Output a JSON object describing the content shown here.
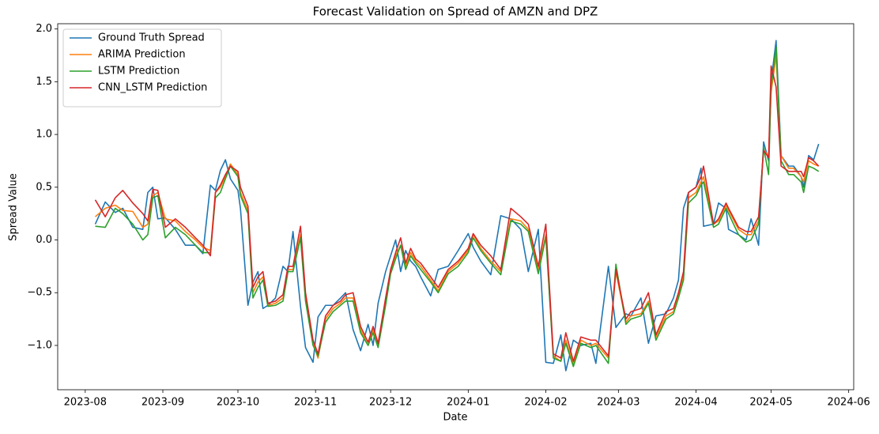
{
  "chart_data": {
    "type": "line",
    "title": "Forecast Validation on Spread of AMZN and DPZ",
    "xlabel": "Date",
    "ylabel": "Spread Value",
    "legend": "upper left",
    "grid": false,
    "xlim": [
      "2023-07-21",
      "2024-06-03"
    ],
    "ylim": [
      -1.42,
      2.05
    ],
    "xticks": [
      {
        "value": "2023-08-01",
        "label": "2023-08"
      },
      {
        "value": "2023-09-01",
        "label": "2023-09"
      },
      {
        "value": "2023-10-01",
        "label": "2023-10"
      },
      {
        "value": "2023-11-01",
        "label": "2023-11"
      },
      {
        "value": "2023-12-01",
        "label": "2023-12"
      },
      {
        "value": "2024-01-01",
        "label": "2024-01"
      },
      {
        "value": "2024-02-01",
        "label": "2024-02"
      },
      {
        "value": "2024-03-01",
        "label": "2024-03"
      },
      {
        "value": "2024-04-01",
        "label": "2024-04"
      },
      {
        "value": "2024-05-01",
        "label": "2024-05"
      },
      {
        "value": "2024-06-01",
        "label": "2024-06"
      }
    ],
    "yticks": [
      {
        "value": -1.0,
        "label": "−1.0"
      },
      {
        "value": -0.5,
        "label": "−0.5"
      },
      {
        "value": 0,
        "label": "0.0"
      },
      {
        "value": 0.5,
        "label": "0.5"
      },
      {
        "value": 1.0,
        "label": "1.0"
      },
      {
        "value": 1.5,
        "label": "1.5"
      },
      {
        "value": 2.0,
        "label": "2.0"
      }
    ],
    "x": [
      "2023-08-05",
      "2023-08-09",
      "2023-08-13",
      "2023-08-16",
      "2023-08-20",
      "2023-08-24",
      "2023-08-26",
      "2023-08-28",
      "2023-08-30",
      "2023-09-02",
      "2023-09-06",
      "2023-09-10",
      "2023-09-14",
      "2023-09-17",
      "2023-09-20",
      "2023-09-22",
      "2023-09-24",
      "2023-09-26",
      "2023-09-28",
      "2023-10-01",
      "2023-10-02",
      "2023-10-05",
      "2023-10-07",
      "2023-10-09",
      "2023-10-11",
      "2023-10-13",
      "2023-10-16",
      "2023-10-19",
      "2023-10-21",
      "2023-10-23",
      "2023-10-26",
      "2023-10-28",
      "2023-10-31",
      "2023-11-02",
      "2023-11-05",
      "2023-11-08",
      "2023-11-11",
      "2023-11-13",
      "2023-11-16",
      "2023-11-19",
      "2023-11-22",
      "2023-11-24",
      "2023-11-26",
      "2023-11-29",
      "2023-12-01",
      "2023-12-03",
      "2023-12-05",
      "2023-12-07",
      "2023-12-09",
      "2023-12-11",
      "2023-12-13",
      "2023-12-17",
      "2023-12-20",
      "2023-12-24",
      "2023-12-28",
      "2024-01-01",
      "2024-01-03",
      "2024-01-06",
      "2024-01-10",
      "2024-01-14",
      "2024-01-18",
      "2024-01-22",
      "2024-01-25",
      "2024-01-29",
      "2024-02-01",
      "2024-02-04",
      "2024-02-07",
      "2024-02-09",
      "2024-02-12",
      "2024-02-15",
      "2024-02-19",
      "2024-02-21",
      "2024-02-26",
      "2024-02-29",
      "2024-03-04",
      "2024-03-06",
      "2024-03-10",
      "2024-03-13",
      "2024-03-16",
      "2024-03-20",
      "2024-03-23",
      "2024-03-25",
      "2024-03-27",
      "2024-03-29",
      "2024-04-01",
      "2024-04-03",
      "2024-04-04",
      "2024-04-08",
      "2024-04-10",
      "2024-04-13",
      "2024-04-14",
      "2024-04-18",
      "2024-04-21",
      "2024-04-23",
      "2024-04-26",
      "2024-04-28",
      "2024-04-30",
      "2024-05-01",
      "2024-05-03",
      "2024-05-05",
      "2024-05-08",
      "2024-05-10",
      "2024-05-13",
      "2024-05-14",
      "2024-05-16",
      "2024-05-18",
      "2024-05-20"
    ],
    "series": [
      {
        "name": "Ground Truth Spread",
        "color": "#1f77b4",
        "values": [
          0.15,
          0.36,
          0.26,
          0.3,
          0.12,
          0.1,
          0.45,
          0.5,
          0.2,
          0.21,
          0.1,
          -0.05,
          -0.05,
          -0.13,
          0.52,
          0.47,
          0.66,
          0.76,
          0.58,
          0.47,
          0.3,
          -0.62,
          -0.4,
          -0.3,
          -0.65,
          -0.62,
          -0.55,
          -0.25,
          -0.3,
          0.08,
          -0.63,
          -1.02,
          -1.16,
          -0.73,
          -0.62,
          -0.62,
          -0.55,
          -0.5,
          -0.85,
          -1.05,
          -0.8,
          -1.0,
          -0.6,
          -0.3,
          -0.15,
          0.0,
          -0.3,
          -0.1,
          -0.2,
          -0.25,
          -0.35,
          -0.53,
          -0.28,
          -0.25,
          -0.1,
          0.06,
          -0.07,
          -0.2,
          -0.33,
          0.23,
          0.2,
          0.1,
          -0.3,
          0.1,
          -1.16,
          -1.17,
          -0.9,
          -1.24,
          -0.95,
          -1.0,
          -0.98,
          -1.17,
          -0.25,
          -0.83,
          -0.7,
          -0.72,
          -0.55,
          -0.98,
          -0.72,
          -0.7,
          -0.55,
          -0.38,
          0.3,
          0.45,
          0.5,
          0.68,
          0.13,
          0.15,
          0.35,
          0.3,
          0.1,
          0.05,
          0.0,
          0.2,
          -0.05,
          0.93,
          0.75,
          1.5,
          1.89,
          0.8,
          0.7,
          0.7,
          0.6,
          0.5,
          0.8,
          0.76,
          0.91
        ]
      },
      {
        "name": "ARIMA Prediction",
        "color": "#ff7f0e",
        "values": [
          0.22,
          0.3,
          0.33,
          0.28,
          0.27,
          0.12,
          0.15,
          0.42,
          0.45,
          0.2,
          0.18,
          0.08,
          0.0,
          -0.07,
          -0.1,
          0.45,
          0.5,
          0.6,
          0.72,
          0.62,
          0.45,
          0.28,
          -0.5,
          -0.4,
          -0.35,
          -0.62,
          -0.6,
          -0.55,
          -0.28,
          -0.28,
          0.05,
          -0.55,
          -0.98,
          -1.12,
          -0.75,
          -0.65,
          -0.6,
          -0.55,
          -0.55,
          -0.85,
          -1.0,
          -0.85,
          -1.0,
          -0.6,
          -0.3,
          -0.15,
          -0.05,
          -0.25,
          -0.12,
          -0.2,
          -0.25,
          -0.38,
          -0.48,
          -0.3,
          -0.22,
          -0.1,
          0.05,
          -0.08,
          -0.2,
          -0.3,
          0.2,
          0.18,
          0.1,
          -0.28,
          0.05,
          -1.1,
          -1.15,
          -0.95,
          -1.18,
          -0.95,
          -1.0,
          -0.98,
          -1.12,
          -0.3,
          -0.78,
          -0.72,
          -0.7,
          -0.58,
          -0.92,
          -0.72,
          -0.68,
          -0.52,
          -0.35,
          0.4,
          0.45,
          0.55,
          0.6,
          0.15,
          0.18,
          0.33,
          0.28,
          0.1,
          0.05,
          0.05,
          0.18,
          0.85,
          0.8,
          1.4,
          1.75,
          0.8,
          0.68,
          0.68,
          0.6,
          0.55,
          0.75,
          0.72,
          0.7
        ]
      },
      {
        "name": "LSTM Prediction",
        "color": "#2ca02c",
        "values": [
          0.13,
          0.12,
          0.3,
          0.25,
          0.15,
          0.0,
          0.05,
          0.4,
          0.42,
          0.02,
          0.12,
          0.05,
          -0.05,
          -0.12,
          -0.12,
          0.4,
          0.45,
          0.58,
          0.7,
          0.6,
          0.42,
          0.25,
          -0.55,
          -0.45,
          -0.38,
          -0.63,
          -0.62,
          -0.58,
          -0.3,
          -0.3,
          0.02,
          -0.58,
          -1.0,
          -1.1,
          -0.78,
          -0.68,
          -0.62,
          -0.58,
          -0.58,
          -0.88,
          -1.0,
          -0.88,
          -1.02,
          -0.62,
          -0.32,
          -0.18,
          -0.05,
          -0.28,
          -0.15,
          -0.22,
          -0.28,
          -0.4,
          -0.5,
          -0.32,
          -0.25,
          -0.12,
          0.02,
          -0.1,
          -0.22,
          -0.33,
          0.18,
          0.15,
          0.08,
          -0.32,
          0.03,
          -1.12,
          -1.15,
          -0.98,
          -1.2,
          -0.98,
          -1.02,
          -1.0,
          -1.17,
          -0.23,
          -0.8,
          -0.75,
          -0.72,
          -0.6,
          -0.95,
          -0.75,
          -0.7,
          -0.55,
          -0.38,
          0.35,
          0.42,
          0.52,
          0.55,
          0.12,
          0.15,
          0.3,
          0.25,
          0.05,
          -0.02,
          0.0,
          0.15,
          0.88,
          0.62,
          1.45,
          1.83,
          0.75,
          0.62,
          0.62,
          0.55,
          0.45,
          0.7,
          0.68,
          0.65
        ]
      },
      {
        "name": "CNN_LSTM Prediction",
        "color": "#d62728",
        "values": [
          0.38,
          0.22,
          0.4,
          0.47,
          0.35,
          0.25,
          0.18,
          0.48,
          0.47,
          0.12,
          0.2,
          0.12,
          0.02,
          -0.05,
          -0.15,
          0.45,
          0.52,
          0.62,
          0.7,
          0.65,
          0.5,
          0.32,
          -0.45,
          -0.35,
          -0.3,
          -0.6,
          -0.58,
          -0.52,
          -0.25,
          -0.25,
          0.13,
          -0.5,
          -0.95,
          -1.08,
          -0.72,
          -0.62,
          -0.58,
          -0.52,
          -0.5,
          -0.82,
          -0.97,
          -0.82,
          -0.98,
          -0.55,
          -0.28,
          -0.12,
          0.02,
          -0.22,
          -0.08,
          -0.18,
          -0.22,
          -0.35,
          -0.45,
          -0.28,
          -0.2,
          -0.08,
          0.06,
          -0.05,
          -0.15,
          -0.28,
          0.3,
          0.22,
          0.15,
          -0.25,
          0.15,
          -1.08,
          -1.12,
          -0.88,
          -1.15,
          -0.92,
          -0.95,
          -0.95,
          -1.1,
          -0.28,
          -0.75,
          -0.68,
          -0.65,
          -0.5,
          -0.9,
          -0.68,
          -0.65,
          -0.5,
          -0.3,
          0.45,
          0.5,
          0.6,
          0.7,
          0.15,
          0.2,
          0.35,
          0.3,
          0.12,
          0.08,
          0.08,
          0.22,
          0.85,
          0.78,
          1.65,
          1.45,
          0.7,
          0.65,
          0.65,
          0.65,
          0.6,
          0.78,
          0.75,
          0.7
        ]
      }
    ]
  }
}
